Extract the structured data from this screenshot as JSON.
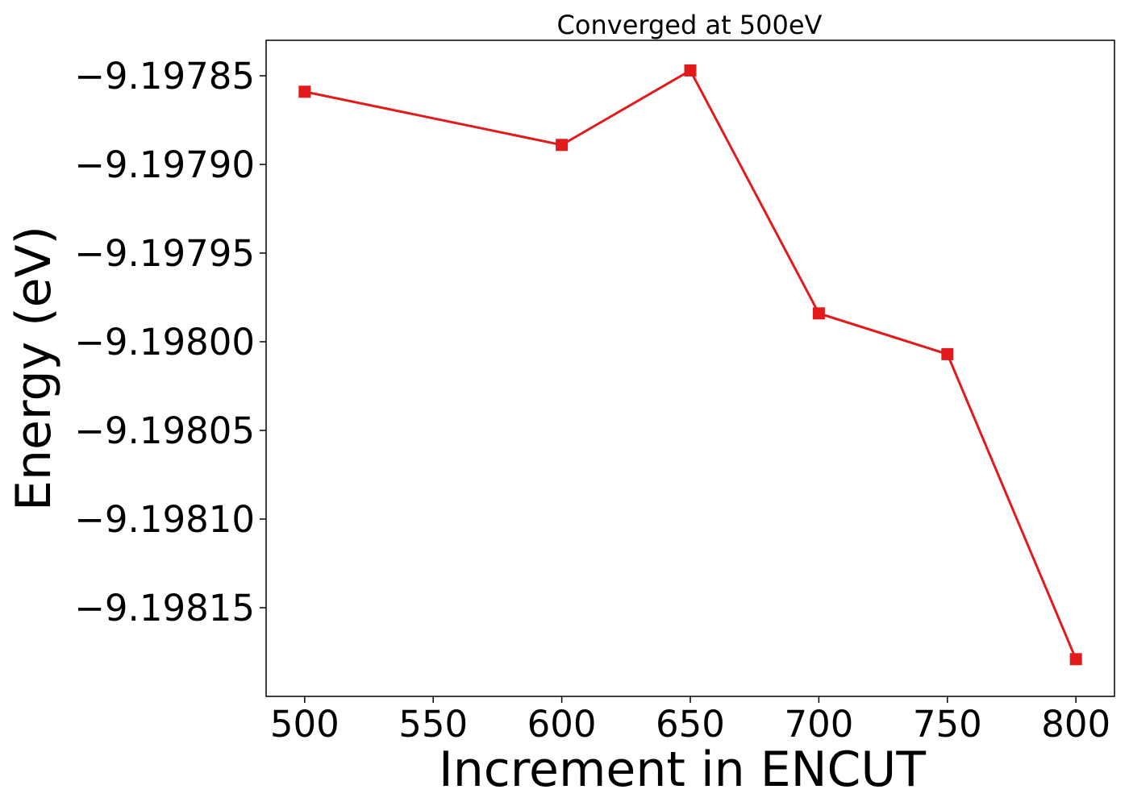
{
  "chart_data": {
    "type": "line",
    "title": "Converged at 500eV",
    "xlabel": "Increment in ENCUT",
    "ylabel": "Energy (eV)",
    "xlim": [
      485,
      815
    ],
    "ylim": [
      -9.1982,
      -9.19783
    ],
    "x_ticks": [
      500,
      550,
      600,
      650,
      700,
      750,
      800
    ],
    "y_ticks": [
      -9.19785,
      -9.1979,
      -9.19795,
      -9.198,
      -9.19805,
      -9.1981,
      -9.19815
    ],
    "x_tick_labels": [
      "500",
      "550",
      "600",
      "650",
      "700",
      "750",
      "800"
    ],
    "y_tick_labels": [
      "−9.19785",
      "−9.19790",
      "−9.19795",
      "−9.19800",
      "−9.19805",
      "−9.19810",
      "−9.19815"
    ],
    "grid": false,
    "legend": "none",
    "series": [
      {
        "color": "#e31a1c",
        "marker": "square",
        "x": [
          500,
          600,
          650,
          700,
          750,
          800
        ],
        "y": [
          -9.197859,
          -9.197889,
          -9.197847,
          -9.197984,
          -9.198007,
          -9.198179
        ]
      }
    ]
  }
}
